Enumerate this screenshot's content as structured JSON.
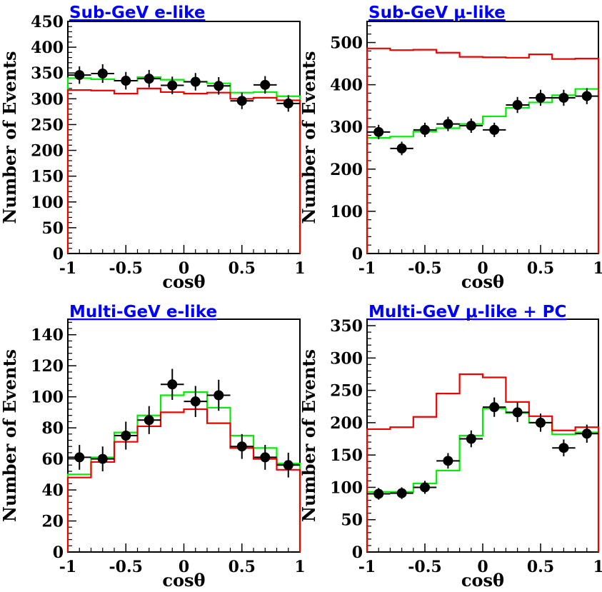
{
  "chart_data": [
    {
      "type": "histogram",
      "title": "Sub-GeV e-like",
      "xlabel": "cosθ",
      "ylabel": "Number of Events",
      "xlim": [
        -1,
        1
      ],
      "ylim": [
        0,
        450
      ],
      "x_ticks": [
        "-1",
        "-0.5",
        "0",
        "0.5",
        "1"
      ],
      "y_ticks": [
        0,
        50,
        100,
        150,
        200,
        250,
        300,
        350,
        400,
        450
      ],
      "bin_edges": [
        -1,
        -0.8,
        -0.6,
        -0.4,
        -0.2,
        0,
        0.2,
        0.4,
        0.6,
        0.8,
        1
      ],
      "series": [
        {
          "kind": "data",
          "color": "#000000",
          "x": [
            -0.9,
            -0.7,
            -0.5,
            -0.3,
            -0.1,
            0.1,
            0.3,
            0.5,
            0.7,
            0.9
          ],
          "y": [
            346,
            349,
            335,
            339,
            326,
            333,
            325,
            296,
            327,
            291
          ],
          "err": [
            17,
            18,
            17,
            17,
            17,
            17,
            17,
            16,
            17,
            16
          ]
        },
        {
          "kind": "step",
          "color": "#00ee00",
          "values": [
            340,
            338,
            335,
            342,
            337,
            333,
            330,
            312,
            313,
            305
          ]
        },
        {
          "kind": "step",
          "color": "#ee0000",
          "values": [
            317,
            316,
            310,
            320,
            313,
            310,
            312,
            300,
            302,
            297
          ]
        }
      ]
    },
    {
      "type": "histogram",
      "title": "Sub-GeV μ-like",
      "xlabel": "cosθ",
      "ylabel": "Number of Events",
      "xlim": [
        -1,
        1
      ],
      "ylim": [
        0,
        550
      ],
      "x_ticks": [
        "-1",
        "-0.5",
        "0",
        "0.5",
        "1"
      ],
      "y_ticks": [
        0,
        100,
        200,
        300,
        400,
        500
      ],
      "bin_edges": [
        -1,
        -0.8,
        -0.6,
        -0.4,
        -0.2,
        0,
        0.2,
        0.4,
        0.6,
        0.8,
        1
      ],
      "series": [
        {
          "kind": "data",
          "color": "#000000",
          "x": [
            -0.9,
            -0.7,
            -0.5,
            -0.3,
            -0.1,
            0.1,
            0.3,
            0.5,
            0.7,
            0.9
          ],
          "y": [
            288,
            249,
            293,
            307,
            303,
            293,
            352,
            369,
            369,
            373
          ],
          "err": [
            17,
            16,
            17,
            17,
            17,
            17,
            19,
            19,
            19,
            19
          ]
        },
        {
          "kind": "step",
          "color": "#00ee00",
          "values": [
            274,
            277,
            289,
            297,
            307,
            325,
            345,
            358,
            375,
            390
          ]
        },
        {
          "kind": "step",
          "color": "#ee0000",
          "values": [
            486,
            482,
            483,
            476,
            466,
            465,
            464,
            472,
            461,
            462
          ]
        }
      ]
    },
    {
      "type": "histogram",
      "title": "Multi-GeV e-like",
      "xlabel": "cosθ",
      "ylabel": "Number of Events",
      "xlim": [
        -1,
        1
      ],
      "ylim": [
        0,
        150
      ],
      "x_ticks": [
        "-1",
        "-0.5",
        "0",
        "0.5",
        "1"
      ],
      "y_ticks": [
        0,
        20,
        40,
        60,
        80,
        100,
        120,
        140
      ],
      "bin_edges": [
        -1,
        -0.8,
        -0.6,
        -0.4,
        -0.2,
        0,
        0.2,
        0.4,
        0.6,
        0.8,
        1
      ],
      "series": [
        {
          "kind": "data",
          "color": "#000000",
          "x": [
            -0.9,
            -0.7,
            -0.5,
            -0.3,
            -0.1,
            0.1,
            0.3,
            0.5,
            0.7,
            0.9
          ],
          "y": [
            61,
            60,
            75,
            85,
            108,
            97,
            101,
            68,
            61,
            56
          ],
          "err": [
            8,
            8,
            9,
            9,
            10,
            10,
            10,
            8,
            8,
            8
          ]
        },
        {
          "kind": "step",
          "color": "#00ee00",
          "values": [
            50,
            61,
            77,
            88,
            101,
            103,
            93,
            75,
            67,
            57
          ]
        },
        {
          "kind": "step",
          "color": "#ee0000",
          "values": [
            48,
            58,
            71,
            81,
            90,
            92,
            83,
            67,
            60,
            53
          ]
        }
      ]
    },
    {
      "type": "histogram",
      "title": "Multi-GeV μ-like + PC",
      "xlabel": "cosθ",
      "ylabel": "Number of Events",
      "xlim": [
        -1,
        1
      ],
      "ylim": [
        0,
        360
      ],
      "x_ticks": [
        "-1",
        "-0.5",
        "0",
        "0.5",
        "1"
      ],
      "y_ticks": [
        0,
        50,
        100,
        150,
        200,
        250,
        300,
        350
      ],
      "bin_edges": [
        -1,
        -0.8,
        -0.6,
        -0.4,
        -0.2,
        0,
        0.2,
        0.4,
        0.6,
        0.8,
        1
      ],
      "series": [
        {
          "kind": "data",
          "color": "#000000",
          "x": [
            -0.9,
            -0.7,
            -0.5,
            -0.3,
            -0.1,
            0.1,
            0.3,
            0.5,
            0.7,
            0.9
          ],
          "y": [
            90,
            91,
            100,
            141,
            175,
            224,
            216,
            200,
            161,
            183
          ],
          "err": [
            9,
            9,
            10,
            12,
            13,
            15,
            15,
            14,
            13,
            14
          ]
        },
        {
          "kind": "step",
          "color": "#00ee00",
          "values": [
            93,
            93,
            106,
            126,
            180,
            222,
            215,
            200,
            182,
            185
          ]
        },
        {
          "kind": "step",
          "color": "#ee0000",
          "values": [
            190,
            193,
            209,
            245,
            275,
            270,
            232,
            210,
            188,
            193
          ]
        }
      ]
    }
  ]
}
